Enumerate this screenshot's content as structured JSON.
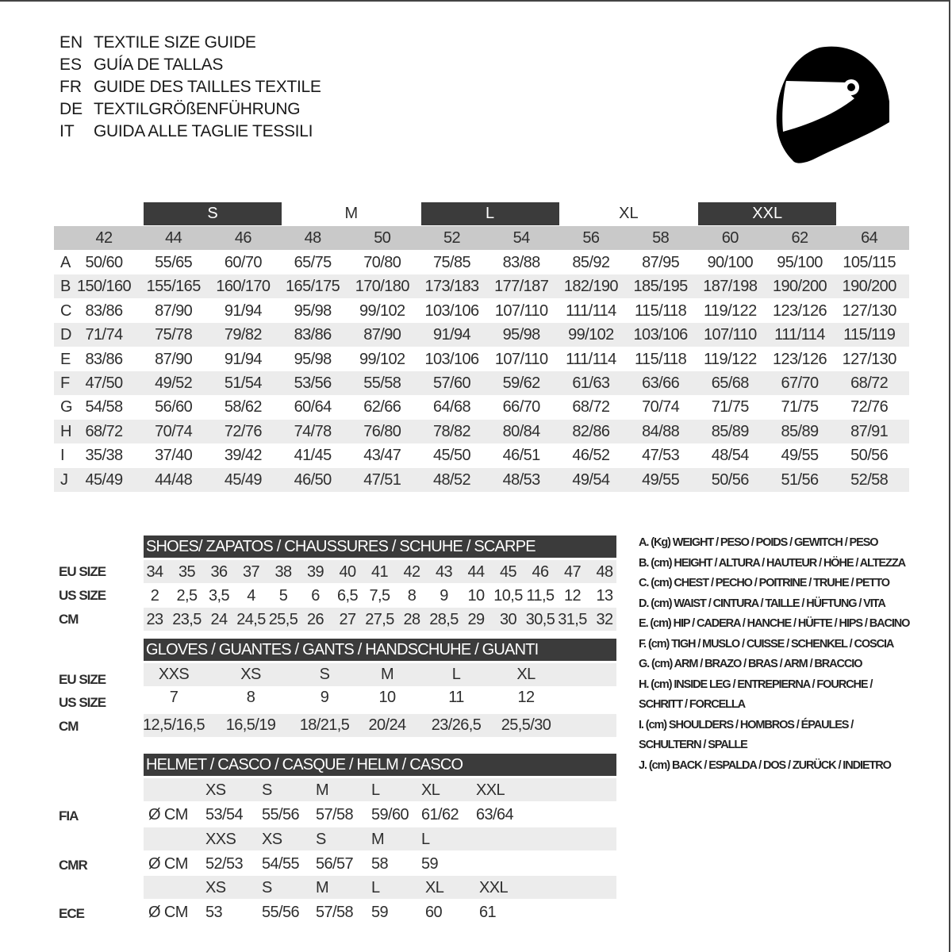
{
  "header": {
    "lines": [
      {
        "code": "EN",
        "title": "TEXTILE SIZE GUIDE"
      },
      {
        "code": "ES",
        "title": "GUÍA DE TALLAS"
      },
      {
        "code": "FR",
        "title": "GUIDE DES TAILLES TEXTILE"
      },
      {
        "code": "DE",
        "title": "TEXTILGRÖßENFÜHRUNG"
      },
      {
        "code": "IT",
        "title": "GUIDA ALLE TAGLIE TESSILI"
      }
    ],
    "icon": "helmet-icon"
  },
  "textile": {
    "groups": [
      {
        "label": "S",
        "dark": true
      },
      {
        "label": "M",
        "dark": false
      },
      {
        "label": "L",
        "dark": true
      },
      {
        "label": "XL",
        "dark": false
      },
      {
        "label": "XXL",
        "dark": true
      }
    ],
    "sizes": [
      "42",
      "44",
      "46",
      "48",
      "50",
      "52",
      "54",
      "56",
      "58",
      "60",
      "62",
      "64"
    ],
    "rows": [
      {
        "letter": "A",
        "values": [
          "50/60",
          "55/65",
          "60/70",
          "65/75",
          "70/80",
          "75/85",
          "83/88",
          "85/92",
          "87/95",
          "90/100",
          "95/100",
          "105/115"
        ]
      },
      {
        "letter": "B",
        "values": [
          "150/160",
          "155/165",
          "160/170",
          "165/175",
          "170/180",
          "173/183",
          "177/187",
          "182/190",
          "185/195",
          "187/198",
          "190/200",
          "190/200"
        ]
      },
      {
        "letter": "C",
        "values": [
          "83/86",
          "87/90",
          "91/94",
          "95/98",
          "99/102",
          "103/106",
          "107/110",
          "111/114",
          "115/118",
          "119/122",
          "123/126",
          "127/130"
        ]
      },
      {
        "letter": "D",
        "values": [
          "71/74",
          "75/78",
          "79/82",
          "83/86",
          "87/90",
          "91/94",
          "95/98",
          "99/102",
          "103/106",
          "107/110",
          "111/114",
          "115/119"
        ]
      },
      {
        "letter": "E",
        "values": [
          "83/86",
          "87/90",
          "91/94",
          "95/98",
          "99/102",
          "103/106",
          "107/110",
          "111/114",
          "115/118",
          "119/122",
          "123/126",
          "127/130"
        ]
      },
      {
        "letter": "F",
        "values": [
          "47/50",
          "49/52",
          "51/54",
          "53/56",
          "55/58",
          "57/60",
          "59/62",
          "61/63",
          "63/66",
          "65/68",
          "67/70",
          "68/72"
        ]
      },
      {
        "letter": "G",
        "values": [
          "54/58",
          "56/60",
          "58/62",
          "60/64",
          "62/66",
          "64/68",
          "66/70",
          "68/72",
          "70/74",
          "71/75",
          "71/75",
          "72/76"
        ]
      },
      {
        "letter": "H",
        "values": [
          "68/72",
          "70/74",
          "72/76",
          "74/78",
          "76/80",
          "78/82",
          "80/84",
          "82/86",
          "84/88",
          "85/89",
          "85/89",
          "87/91"
        ]
      },
      {
        "letter": "I",
        "values": [
          "35/38",
          "37/40",
          "39/42",
          "41/45",
          "43/47",
          "45/50",
          "46/51",
          "46/52",
          "47/53",
          "48/54",
          "49/55",
          "50/56"
        ]
      },
      {
        "letter": "J",
        "values": [
          "45/49",
          "44/48",
          "45/49",
          "46/50",
          "47/51",
          "48/52",
          "48/53",
          "49/54",
          "49/55",
          "50/56",
          "51/56",
          "52/58"
        ]
      }
    ]
  },
  "shoes": {
    "title": "SHOES/ ZAPATOS / CHAUSSURES / SCHUHE / SCARPE",
    "rows": [
      {
        "label": "EU SIZE",
        "values": [
          "34",
          "35",
          "36",
          "37",
          "38",
          "39",
          "40",
          "41",
          "42",
          "43",
          "44",
          "45",
          "46",
          "47",
          "48"
        ]
      },
      {
        "label": "US SIZE",
        "values": [
          "2",
          "2,5",
          "3,5",
          "4",
          "5",
          "6",
          "6,5",
          "7,5",
          "8",
          "9",
          "10",
          "10,5",
          "11,5",
          "12",
          "13"
        ]
      },
      {
        "label": "CM",
        "values": [
          "23",
          "23,5",
          "24",
          "24,5",
          "25,5",
          "26",
          "27",
          "27,5",
          "28",
          "28,5",
          "29",
          "30",
          "30,5",
          "31,5",
          "32"
        ]
      }
    ]
  },
  "gloves": {
    "title": "GLOVES / GUANTES / GANTS / HANDSCHUHE / GUANTI",
    "rows": [
      {
        "label": "EU SIZE",
        "values": [
          "XXS",
          "XS",
          "S",
          "M",
          "L",
          "XL"
        ]
      },
      {
        "label": "US SIZE",
        "values": [
          "7",
          "8",
          "9",
          "10",
          "11",
          "12"
        ]
      },
      {
        "label": "CM",
        "values": [
          "12,5/16,5",
          "16,5/19",
          "18/21,5",
          "20/24",
          "23/26,5",
          "25,5/30"
        ]
      }
    ]
  },
  "helmet": {
    "title": "HELMET / CASCO / CASQUE / HELM / CASCO",
    "standards": [
      {
        "name": "FIA",
        "unit": "Ø CM",
        "sizes": [
          "XS",
          "S",
          "M",
          "L",
          "XL",
          "XXL"
        ],
        "values": [
          "53/54",
          "55/56",
          "57/58",
          "59/60",
          "61/62",
          "63/64"
        ]
      },
      {
        "name": "CMR",
        "unit": "Ø CM",
        "sizes": [
          "XXS",
          "XS",
          "S",
          "M",
          "L"
        ],
        "values": [
          "52/53",
          "54/55",
          "56/57",
          "58",
          "59"
        ]
      },
      {
        "name": "ECE",
        "unit": "Ø CM",
        "sizes": [
          "XS",
          "S",
          "M",
          "L",
          "XL",
          "XXL"
        ],
        "values": [
          "53",
          "55/56",
          "57/58",
          "59",
          "60",
          "61"
        ]
      }
    ]
  },
  "legend": {
    "lines": [
      "A. (Kg) WEIGHT / PESO / POIDS / GEWITCH / PESO",
      "B. (cm) HEIGHT / ALTURA / HAUTEUR / HÖHE / ALTEZZA",
      "C. (cm) CHEST / PECHO / POITRINE / TRUHE / PETTO",
      "D. (cm) WAIST / CINTURA / TAILLE / HÜFTUNG / VITA",
      "E. (cm) HIP / CADERA / HANCHE / HÜFTE / HIPS /  BACINO",
      "F.  (cm) TIGH / MUSLO / CUISSE / SCHENKEL / COSCIA",
      "G. (cm) ARM  / BRAZO / BRAS / ARM / BRACCIO",
      "H. (cm) INSIDE LEG / ENTREPIERNA / FOURCHE /",
      "SCHRITT / FORCELLA",
      "I.  (cm) SHOULDERS / HOMBROS / ÉPAULES /",
      "SCHULTERN / SPALLE",
      "J. (cm) BACK / ESPALDA / DOS / ZURÜCK / INDIETRO"
    ]
  },
  "colors": {
    "dark_bar": "#3b3b3b",
    "size_row": "#c9c9c9",
    "stripe": "#ececec"
  }
}
